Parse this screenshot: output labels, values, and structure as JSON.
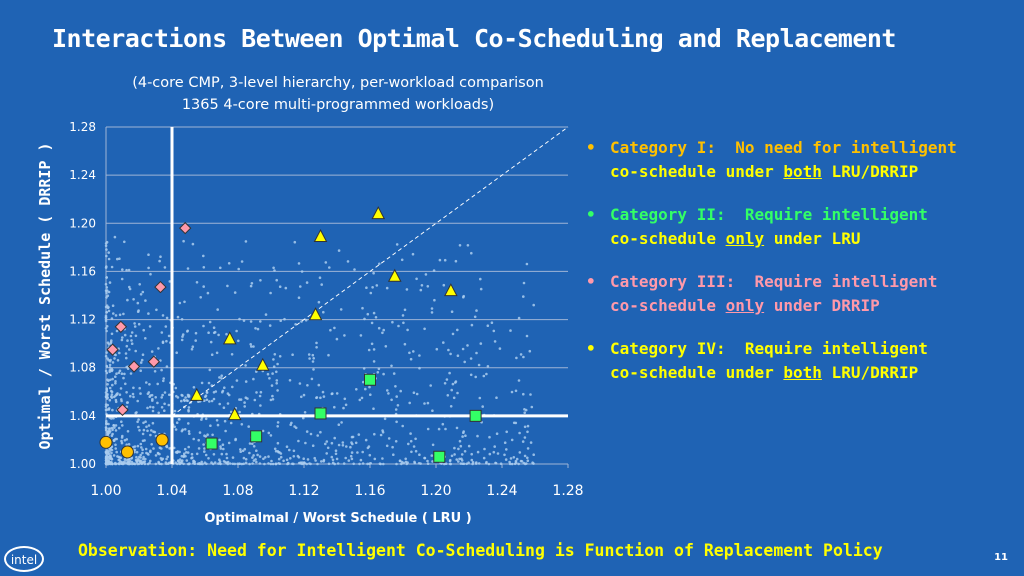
{
  "slide": {
    "title": "Interactions Between Optimal Co-Scheduling and Replacement",
    "subtitle_line1": "(4-core CMP, 3-level hierarchy, per-workload comparison",
    "subtitle_line2": "1365 4-core multi-programmed workloads)",
    "bullets": [
      {
        "label": "Category I:",
        "text1": "No need for intelligent",
        "pre": "co-schedule under ",
        "emph": "both",
        "post": " LRU/DRRIP",
        "color": "#ffc000"
      },
      {
        "label": "Category II:",
        "text1": "Require intelligent",
        "pre": "co-schedule ",
        "emph": "only",
        "post": " under LRU",
        "color": "#33ff66"
      },
      {
        "label": "Category III:",
        "text1": "Require intelligent",
        "pre": "co-schedule ",
        "emph": "only",
        "post": " under DRRIP",
        "color": "#ff99aa"
      },
      {
        "label": "Category IV:",
        "text1": "Require intelligent",
        "pre": "co-schedule under ",
        "emph": "both",
        "post": " LRU/DRRIP",
        "color": "#ffff00"
      }
    ],
    "bullet_symbol": "•",
    "observation": "Observation:  Need for Intelligent Co-Scheduling is Function of Replacement Policy",
    "logo_text": "intel",
    "page_number": "11"
  },
  "chart_data": {
    "type": "scatter",
    "xlabel": "Optimalmal / Worst Schedule ( LRU )",
    "ylabel": "Optimal / Worst Schedule ( DRRIP )",
    "xlim": [
      1.0,
      1.28
    ],
    "ylim": [
      1.0,
      1.28
    ],
    "x_ticks": [
      "1.00",
      "1.04",
      "1.08",
      "1.12",
      "1.16",
      "1.20",
      "1.24",
      "1.28"
    ],
    "y_ticks": [
      "1.00",
      "1.04",
      "1.08",
      "1.12",
      "1.16",
      "1.20",
      "1.24",
      "1.28"
    ],
    "threshold_x": 1.04,
    "threshold_y": 1.04,
    "diagonal": [
      [
        1.04,
        1.04
      ],
      [
        1.28,
        1.28
      ]
    ],
    "grid": "horizontal",
    "colors": {
      "background": "#1f63b4",
      "workloads": "#aaccee",
      "category_1": "#ffc000",
      "category_2": "#33ff66",
      "category_3": "#ff99aa",
      "category_4": "#ffff00"
    },
    "series": [
      {
        "marker": "circle",
        "color": "#ffc000",
        "points": [
          [
            1.0,
            1.018
          ],
          [
            1.013,
            1.01
          ],
          [
            1.034,
            1.02
          ]
        ]
      },
      {
        "marker": "square",
        "color": "#33ff66",
        "points": [
          [
            1.064,
            1.017
          ],
          [
            1.091,
            1.023
          ],
          [
            1.13,
            1.042
          ],
          [
            1.16,
            1.07
          ],
          [
            1.202,
            1.006
          ],
          [
            1.224,
            1.04
          ]
        ]
      },
      {
        "marker": "diamond",
        "color": "#ff99aa",
        "points": [
          [
            1.048,
            1.196
          ],
          [
            1.033,
            1.147
          ],
          [
            1.009,
            1.114
          ],
          [
            1.004,
            1.095
          ],
          [
            1.029,
            1.085
          ],
          [
            1.017,
            1.081
          ],
          [
            1.01,
            1.045
          ]
        ]
      },
      {
        "marker": "triangle",
        "color": "#ffff00",
        "points": [
          [
            1.165,
            1.208
          ],
          [
            1.13,
            1.189
          ],
          [
            1.175,
            1.156
          ],
          [
            1.209,
            1.144
          ],
          [
            1.127,
            1.124
          ],
          [
            1.075,
            1.104
          ],
          [
            1.095,
            1.082
          ],
          [
            1.055,
            1.057
          ],
          [
            1.078,
            1.041
          ]
        ]
      }
    ]
  }
}
